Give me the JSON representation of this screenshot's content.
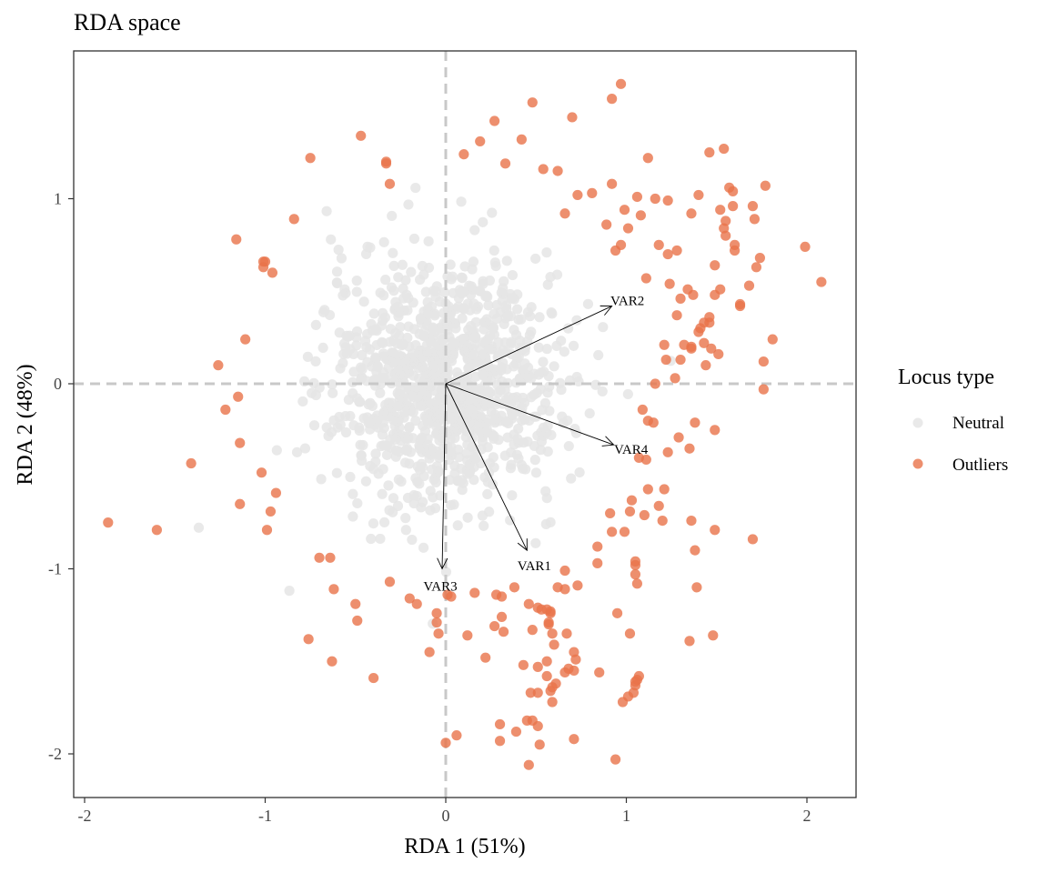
{
  "chart_data": {
    "type": "scatter",
    "title": "RDA space",
    "xlabel": "RDA 1 (51%)",
    "ylabel": "RDA 2 (48%)",
    "xlim": [
      -2.05,
      2.27
    ],
    "ylim": [
      -2.25,
      1.8
    ],
    "x_ticks": [
      -2,
      -1,
      0,
      1,
      2
    ],
    "y_ticks": [
      -2,
      -1,
      0,
      1
    ],
    "legend": {
      "title": "Locus type",
      "position": "right",
      "entries": [
        {
          "label": "Neutral",
          "color": "#e5e5e5"
        },
        {
          "label": "Outliers",
          "color": "#e8734a"
        }
      ]
    },
    "reference_lines": {
      "x": 0,
      "y": 0,
      "style": "dashed",
      "color": "#c8c8c8"
    },
    "arrows": [
      {
        "label": "VAR1",
        "x": 0.45,
        "y": -0.9
      },
      {
        "label": "VAR2",
        "x": 0.92,
        "y": 0.42
      },
      {
        "label": "VAR3",
        "x": -0.02,
        "y": -1.0
      },
      {
        "label": "VAR4",
        "x": 0.93,
        "y": -0.33
      }
    ],
    "series": [
      {
        "name": "Outliers",
        "points": [
          [
            0.97,
            1.62
          ],
          [
            0.48,
            1.52
          ],
          [
            0.92,
            1.54
          ],
          [
            0.7,
            1.44
          ],
          [
            0.27,
            1.42
          ],
          [
            -0.47,
            1.34
          ],
          [
            0.42,
            1.32
          ],
          [
            0.19,
            1.31
          ],
          [
            -0.75,
            1.22
          ],
          [
            0.1,
            1.24
          ],
          [
            -0.33,
            1.19
          ],
          [
            -0.33,
            1.2
          ],
          [
            0.33,
            1.19
          ],
          [
            0.54,
            1.16
          ],
          [
            0.62,
            1.15
          ],
          [
            1.12,
            1.22
          ],
          [
            1.46,
            1.25
          ],
          [
            1.54,
            1.27
          ],
          [
            0.92,
            1.08
          ],
          [
            1.16,
            1.0
          ],
          [
            -0.31,
            1.08
          ],
          [
            0.73,
            1.02
          ],
          [
            0.81,
            1.03
          ],
          [
            1.06,
            1.01
          ],
          [
            1.23,
            0.99
          ],
          [
            1.4,
            1.02
          ],
          [
            1.57,
            1.06
          ],
          [
            1.77,
            1.07
          ],
          [
            1.59,
            1.04
          ],
          [
            1.7,
            0.96
          ],
          [
            0.66,
            0.92
          ],
          [
            0.99,
            0.94
          ],
          [
            1.08,
            0.91
          ],
          [
            1.36,
            0.92
          ],
          [
            1.52,
            0.94
          ],
          [
            1.59,
            0.96
          ],
          [
            -0.84,
            0.89
          ],
          [
            1.55,
            0.88
          ],
          [
            0.89,
            0.86
          ],
          [
            1.01,
            0.84
          ],
          [
            1.71,
            0.89
          ],
          [
            1.54,
            0.84
          ],
          [
            1.55,
            0.8
          ],
          [
            -1.16,
            0.78
          ],
          [
            0.97,
            0.75
          ],
          [
            1.18,
            0.75
          ],
          [
            1.6,
            0.75
          ],
          [
            0.94,
            0.72
          ],
          [
            1.28,
            0.72
          ],
          [
            1.6,
            0.72
          ],
          [
            1.99,
            0.74
          ],
          [
            1.23,
            0.7
          ],
          [
            1.74,
            0.68
          ],
          [
            -1.01,
            0.66
          ],
          [
            -1.0,
            0.66
          ],
          [
            -1.01,
            0.63
          ],
          [
            1.49,
            0.64
          ],
          [
            1.72,
            0.63
          ],
          [
            -0.96,
            0.6
          ],
          [
            1.11,
            0.57
          ],
          [
            2.08,
            0.55
          ],
          [
            1.24,
            0.54
          ],
          [
            1.34,
            0.51
          ],
          [
            1.52,
            0.51
          ],
          [
            1.68,
            0.53
          ],
          [
            1.3,
            0.46
          ],
          [
            1.37,
            0.48
          ],
          [
            1.49,
            0.48
          ],
          [
            1.63,
            0.43
          ],
          [
            1.63,
            0.42
          ],
          [
            1.28,
            0.37
          ],
          [
            1.46,
            0.36
          ],
          [
            1.46,
            0.33
          ],
          [
            1.43,
            0.33
          ],
          [
            1.41,
            0.3
          ],
          [
            1.4,
            0.28
          ],
          [
            1.43,
            0.22
          ],
          [
            1.81,
            0.24
          ],
          [
            -1.11,
            0.24
          ],
          [
            1.21,
            0.21
          ],
          [
            1.32,
            0.21
          ],
          [
            1.36,
            0.19
          ],
          [
            1.36,
            0.2
          ],
          [
            1.51,
            0.16
          ],
          [
            1.47,
            0.19
          ],
          [
            1.22,
            0.13
          ],
          [
            1.3,
            0.13
          ],
          [
            -1.26,
            0.1
          ],
          [
            1.27,
            0.03
          ],
          [
            1.44,
            0.1
          ],
          [
            1.76,
            0.12
          ],
          [
            1.16,
            0.0
          ],
          [
            1.76,
            -0.03
          ],
          [
            -1.15,
            -0.07
          ],
          [
            -1.22,
            -0.14
          ],
          [
            1.09,
            -0.14
          ],
          [
            1.12,
            -0.2
          ],
          [
            1.15,
            -0.21
          ],
          [
            1.38,
            -0.21
          ],
          [
            1.29,
            -0.29
          ],
          [
            1.49,
            -0.25
          ],
          [
            -1.14,
            -0.32
          ],
          [
            1.23,
            -0.37
          ],
          [
            1.35,
            -0.35
          ],
          [
            1.07,
            -0.4
          ],
          [
            1.11,
            -0.41
          ],
          [
            -1.41,
            -0.43
          ],
          [
            -1.02,
            -0.48
          ],
          [
            -0.94,
            -0.59
          ],
          [
            1.12,
            -0.57
          ],
          [
            1.21,
            -0.57
          ],
          [
            1.03,
            -0.63
          ],
          [
            -1.14,
            -0.65
          ],
          [
            1.18,
            -0.66
          ],
          [
            -0.97,
            -0.69
          ],
          [
            0.91,
            -0.7
          ],
          [
            1.02,
            -0.69
          ],
          [
            1.1,
            -0.71
          ],
          [
            -1.87,
            -0.75
          ],
          [
            1.2,
            -0.74
          ],
          [
            1.36,
            -0.74
          ],
          [
            -1.6,
            -0.79
          ],
          [
            -0.99,
            -0.79
          ],
          [
            0.92,
            -0.8
          ],
          [
            0.99,
            -0.8
          ],
          [
            1.49,
            -0.79
          ],
          [
            1.7,
            -0.84
          ],
          [
            0.84,
            -0.88
          ],
          [
            1.38,
            -0.9
          ],
          [
            -0.64,
            -0.94
          ],
          [
            -0.7,
            -0.94
          ],
          [
            0.84,
            -0.97
          ],
          [
            1.05,
            -0.96
          ],
          [
            1.05,
            -0.98
          ],
          [
            0.66,
            -1.01
          ],
          [
            1.05,
            -1.03
          ],
          [
            1.06,
            -1.08
          ],
          [
            -0.31,
            -1.07
          ],
          [
            0.38,
            -1.1
          ],
          [
            0.62,
            -1.1
          ],
          [
            0.66,
            -1.11
          ],
          [
            0.73,
            -1.09
          ],
          [
            1.39,
            -1.1
          ],
          [
            -0.62,
            -1.11
          ],
          [
            0.01,
            -1.14
          ],
          [
            0.16,
            -1.13
          ],
          [
            0.28,
            -1.14
          ],
          [
            0.31,
            -1.15
          ],
          [
            0.03,
            -1.15
          ],
          [
            -0.2,
            -1.16
          ],
          [
            -0.16,
            -1.19
          ],
          [
            -0.5,
            -1.19
          ],
          [
            0.46,
            -1.19
          ],
          [
            0.51,
            -1.21
          ],
          [
            0.56,
            -1.22
          ],
          [
            0.53,
            -1.22
          ],
          [
            0.58,
            -1.24
          ],
          [
            0.58,
            -1.23
          ],
          [
            -0.05,
            -1.24
          ],
          [
            0.95,
            -1.24
          ],
          [
            0.31,
            -1.26
          ],
          [
            0.57,
            -1.29
          ],
          [
            -0.05,
            -1.29
          ],
          [
            -0.49,
            -1.28
          ],
          [
            0.27,
            -1.31
          ],
          [
            0.57,
            -1.3
          ],
          [
            0.48,
            -1.33
          ],
          [
            0.67,
            -1.35
          ],
          [
            -0.04,
            -1.35
          ],
          [
            0.59,
            -1.35
          ],
          [
            0.12,
            -1.36
          ],
          [
            0.32,
            -1.34
          ],
          [
            1.02,
            -1.35
          ],
          [
            1.48,
            -1.36
          ],
          [
            -0.76,
            -1.38
          ],
          [
            1.35,
            -1.39
          ],
          [
            0.6,
            -1.41
          ],
          [
            0.71,
            -1.45
          ],
          [
            -0.09,
            -1.45
          ],
          [
            0.72,
            -1.49
          ],
          [
            0.22,
            -1.48
          ],
          [
            -0.63,
            -1.5
          ],
          [
            0.56,
            -1.5
          ],
          [
            0.43,
            -1.52
          ],
          [
            0.51,
            -1.53
          ],
          [
            0.68,
            -1.54
          ],
          [
            0.71,
            -1.55
          ],
          [
            0.85,
            -1.56
          ],
          [
            0.66,
            -1.56
          ],
          [
            1.07,
            -1.58
          ],
          [
            1.06,
            -1.6
          ],
          [
            -0.4,
            -1.59
          ],
          [
            0.56,
            -1.58
          ],
          [
            1.05,
            -1.61
          ],
          [
            0.61,
            -1.62
          ],
          [
            0.59,
            -1.64
          ],
          [
            1.05,
            -1.63
          ],
          [
            0.58,
            -1.66
          ],
          [
            0.51,
            -1.67
          ],
          [
            1.04,
            -1.67
          ],
          [
            0.47,
            -1.67
          ],
          [
            1.01,
            -1.69
          ],
          [
            0.98,
            -1.72
          ],
          [
            0.59,
            -1.72
          ],
          [
            0.45,
            -1.82
          ],
          [
            0.48,
            -1.82
          ],
          [
            0.3,
            -1.84
          ],
          [
            0.51,
            -1.85
          ],
          [
            0.39,
            -1.88
          ],
          [
            0.06,
            -1.9
          ],
          [
            0.3,
            -1.93
          ],
          [
            0.71,
            -1.92
          ],
          [
            0.0,
            -1.94
          ],
          [
            0.52,
            -1.95
          ],
          [
            0.94,
            -2.03
          ],
          [
            0.46,
            -2.06
          ]
        ]
      }
    ]
  }
}
